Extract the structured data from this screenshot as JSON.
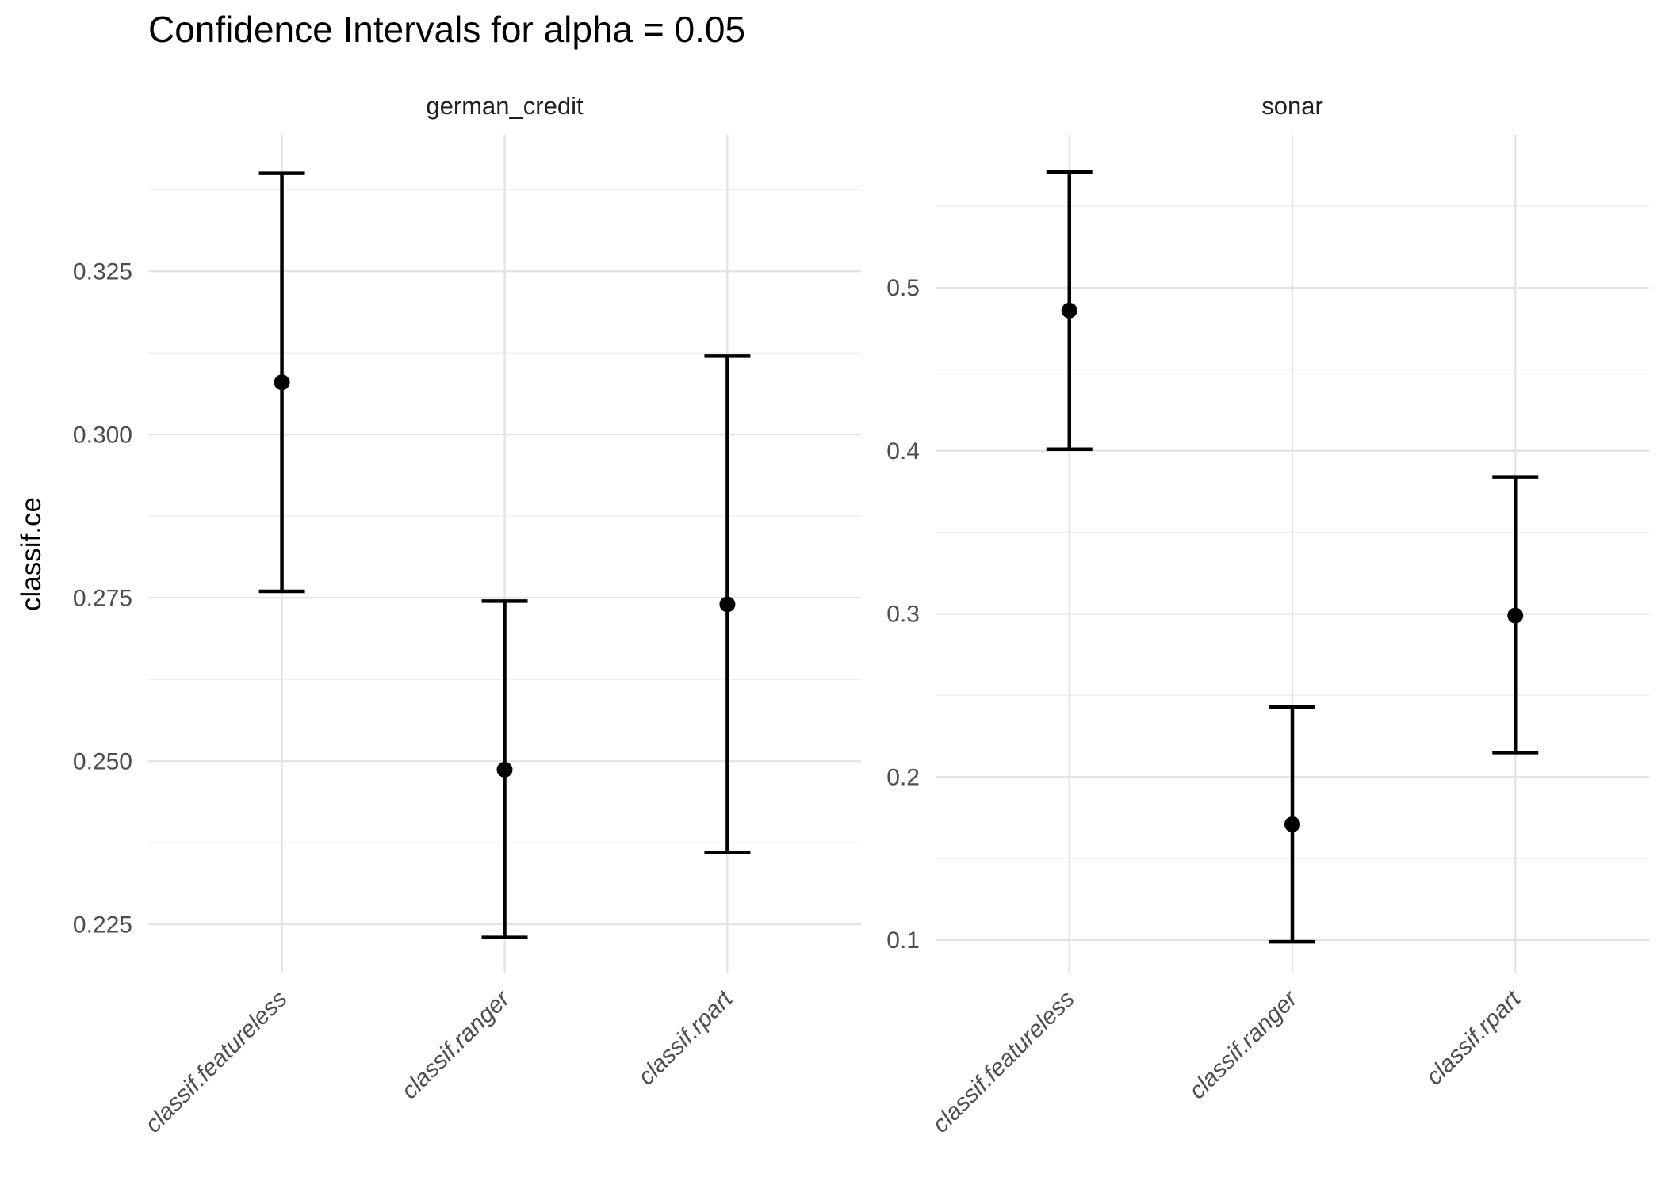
{
  "header": {
    "title": "Confidence Intervals for alpha = 0.05"
  },
  "chart_data": {
    "type": "errorbar",
    "title": "Confidence Intervals for alpha = 0.05",
    "ylabel": "classif.ce",
    "xlabel": "",
    "legend_position": "none",
    "grid": "on",
    "categories": [
      "classif.featureless",
      "classif.ranger",
      "classif.rpart"
    ],
    "facets": [
      {
        "label": "german_credit",
        "ylim": [
          0.2175,
          0.3459
        ],
        "yticks": [
          {
            "v": 0.225,
            "label": "0.225"
          },
          {
            "v": 0.25,
            "label": "0.250"
          },
          {
            "v": 0.275,
            "label": "0.275"
          },
          {
            "v": 0.3,
            "label": "0.300"
          },
          {
            "v": 0.325,
            "label": "0.325"
          }
        ],
        "yminor": [
          0.2375,
          0.2625,
          0.2875,
          0.3125,
          0.3375
        ],
        "series": [
          {
            "learner": "classif.featureless",
            "mean": 0.308,
            "lower": 0.276,
            "upper": 0.34
          },
          {
            "learner": "classif.ranger",
            "mean": 0.2487,
            "lower": 0.223,
            "upper": 0.2745
          },
          {
            "learner": "classif.rpart",
            "mean": 0.274,
            "lower": 0.236,
            "upper": 0.312
          }
        ]
      },
      {
        "label": "sonar",
        "ylim": [
          0.0796,
          0.5938
        ],
        "yticks": [
          {
            "v": 0.1,
            "label": "0.1"
          },
          {
            "v": 0.2,
            "label": "0.2"
          },
          {
            "v": 0.3,
            "label": "0.3"
          },
          {
            "v": 0.4,
            "label": "0.4"
          },
          {
            "v": 0.5,
            "label": "0.5"
          }
        ],
        "yminor": [
          0.15,
          0.25,
          0.35,
          0.45,
          0.55
        ],
        "series": [
          {
            "learner": "classif.featureless",
            "mean": 0.486,
            "lower": 0.401,
            "upper": 0.571
          },
          {
            "learner": "classif.ranger",
            "mean": 0.171,
            "lower": 0.099,
            "upper": 0.243
          },
          {
            "learner": "classif.rpart",
            "mean": 0.299,
            "lower": 0.215,
            "upper": 0.384
          }
        ]
      }
    ],
    "style": {
      "bar_color": "#000000",
      "point_color": "#000000",
      "grid_major_color": "#e2e2e2",
      "grid_minor_color": "#efefef",
      "axis_text_color": "#4d4d4d",
      "strip_text_color": "#1f1f1f",
      "title_color": "#000000",
      "background": "#ffffff"
    }
  }
}
